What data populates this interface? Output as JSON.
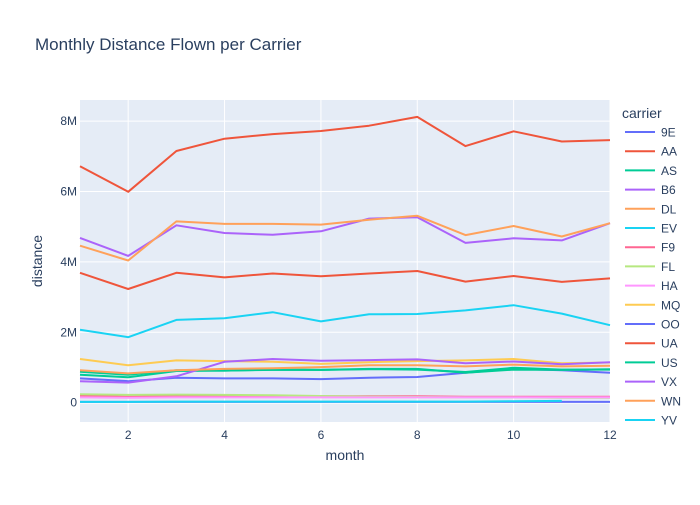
{
  "chart_data": {
    "type": "line",
    "title": "Monthly Distance Flown per Carrier",
    "xlabel": "month",
    "ylabel": "distance",
    "legend_title": "carrier",
    "xlim": [
      1,
      12
    ],
    "ylim": [
      -550000,
      8600000
    ],
    "x_ticks": [
      2,
      4,
      6,
      8,
      10,
      12
    ],
    "y_ticks": [
      {
        "value": 0,
        "label": "0"
      },
      {
        "value": 2000000,
        "label": "2M"
      },
      {
        "value": 4000000,
        "label": "4M"
      },
      {
        "value": 6000000,
        "label": "6M"
      },
      {
        "value": 8000000,
        "label": "8M"
      }
    ],
    "grid": true,
    "legend_position": "right",
    "x": [
      1,
      2,
      3,
      4,
      5,
      6,
      7,
      8,
      9,
      10,
      11,
      12
    ],
    "series": [
      {
        "name": "9E",
        "color": "#636efa",
        "values": [
          690000,
          610000,
          710000,
          690000,
          690000,
          670000,
          710000,
          730000,
          850000,
          960000,
          920000,
          850000
        ]
      },
      {
        "name": "AA",
        "color": "#EF553B",
        "values": [
          6720000,
          5990000,
          7150000,
          7500000,
          7630000,
          7720000,
          7870000,
          8120000,
          7290000,
          7710000,
          7420000,
          7460000
        ]
      },
      {
        "name": "AS",
        "color": "#00cc96",
        "values": [
          790000,
          720000,
          900000,
          910000,
          930000,
          930000,
          960000,
          960000,
          850000,
          940000,
          930000,
          950000
        ]
      },
      {
        "name": "B6",
        "color": "#ab63fa",
        "values": [
          4680000,
          4170000,
          5040000,
          4820000,
          4770000,
          4870000,
          5230000,
          5270000,
          4540000,
          4670000,
          4610000,
          5100000
        ]
      },
      {
        "name": "DL",
        "color": "#FFA15A",
        "values": [
          4460000,
          4040000,
          5150000,
          5080000,
          5080000,
          5060000,
          5200000,
          5310000,
          4760000,
          5020000,
          4720000,
          5100000
        ]
      },
      {
        "name": "EV",
        "color": "#19d3f3",
        "values": [
          2070000,
          1860000,
          2350000,
          2400000,
          2570000,
          2310000,
          2510000,
          2520000,
          2620000,
          2770000,
          2530000,
          2200000
        ]
      },
      {
        "name": "F9",
        "color": "#FF6692",
        "values": [
          200000,
          170000,
          190000,
          190000,
          190000,
          180000,
          180000,
          180000,
          170000,
          170000,
          170000,
          170000
        ]
      },
      {
        "name": "FL",
        "color": "#B6E880",
        "values": [
          240000,
          220000,
          230000,
          220000,
          210000,
          190000,
          170000,
          160000,
          150000,
          150000,
          140000,
          140000
        ]
      },
      {
        "name": "HA",
        "color": "#FF97FF",
        "values": [
          150000,
          140000,
          150000,
          150000,
          150000,
          150000,
          150000,
          150000,
          150000,
          150000,
          150000,
          150000
        ]
      },
      {
        "name": "MQ",
        "color": "#FECB52",
        "values": [
          1240000,
          1060000,
          1200000,
          1180000,
          1160000,
          1100000,
          1150000,
          1180000,
          1200000,
          1240000,
          1120000,
          1140000
        ]
      },
      {
        "name": "OO",
        "color": "#636efa",
        "values": [
          20000,
          20000,
          20000,
          20000,
          20000,
          20000,
          20000,
          20000,
          20000,
          20000,
          20000,
          20000
        ]
      },
      {
        "name": "UA",
        "color": "#EF553B",
        "values": [
          3690000,
          3230000,
          3690000,
          3560000,
          3670000,
          3590000,
          3670000,
          3740000,
          3440000,
          3600000,
          3430000,
          3530000
        ]
      },
      {
        "name": "US",
        "color": "#00cc96",
        "values": [
          880000,
          790000,
          920000,
          910000,
          940000,
          930000,
          950000,
          940000,
          870000,
          990000,
          940000,
          940000
        ]
      },
      {
        "name": "VX",
        "color": "#ab63fa",
        "values": [
          610000,
          570000,
          750000,
          1160000,
          1240000,
          1190000,
          1210000,
          1230000,
          1120000,
          1170000,
          1090000,
          1150000
        ]
      },
      {
        "name": "WN",
        "color": "#FFA15A",
        "values": [
          920000,
          830000,
          920000,
          960000,
          980000,
          1010000,
          1060000,
          1060000,
          1030000,
          1080000,
          1030000,
          1050000
        ]
      },
      {
        "name": "YV",
        "color": "#19d3f3",
        "values": [
          20000,
          20000,
          30000,
          30000,
          30000,
          30000,
          30000,
          30000,
          30000,
          40000,
          50000,
          null
        ]
      }
    ]
  }
}
